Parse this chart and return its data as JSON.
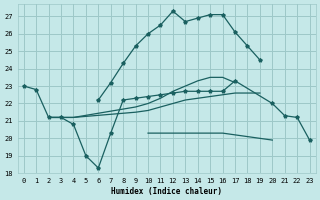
{
  "xlabel": "Humidex (Indice chaleur)",
  "bg_color": "#c5e8e8",
  "grid_color": "#9dc8c8",
  "line_color": "#1a6060",
  "xlim": [
    -0.5,
    23.5
  ],
  "ylim": [
    18,
    27.7
  ],
  "yticks": [
    18,
    19,
    20,
    21,
    22,
    23,
    24,
    25,
    26,
    27
  ],
  "xticks": [
    0,
    1,
    2,
    3,
    4,
    5,
    6,
    7,
    8,
    9,
    10,
    11,
    12,
    13,
    14,
    15,
    16,
    17,
    18,
    19,
    20,
    21,
    22,
    23
  ],
  "series": [
    {
      "x": [
        6,
        7,
        8,
        9,
        10,
        11,
        12,
        13,
        14,
        15,
        16,
        17,
        18,
        19
      ],
      "y": [
        22.2,
        23.2,
        24.3,
        25.3,
        26.0,
        26.5,
        27.3,
        26.7,
        26.9,
        27.1,
        27.1,
        26.1,
        25.3,
        24.5
      ],
      "has_markers": true
    },
    {
      "x": [
        0,
        1,
        2,
        3,
        4,
        5,
        6,
        7,
        8,
        9,
        10,
        11,
        12,
        13,
        14,
        15,
        16,
        17,
        20,
        21,
        22,
        23
      ],
      "y": [
        23.0,
        22.8,
        21.2,
        21.2,
        20.8,
        19.0,
        18.3,
        20.3,
        22.2,
        22.3,
        22.4,
        22.5,
        22.6,
        22.7,
        22.7,
        22.7,
        22.7,
        23.3,
        22.0,
        21.3,
        21.2,
        19.9
      ],
      "has_markers": true
    },
    {
      "x": [
        2,
        3,
        4,
        9,
        10,
        11,
        12,
        13,
        14,
        15,
        16,
        17,
        18,
        19
      ],
      "y": [
        21.2,
        21.2,
        21.2,
        21.5,
        21.6,
        21.8,
        22.0,
        22.2,
        22.3,
        22.4,
        22.5,
        22.6,
        22.6,
        22.6
      ],
      "has_markers": false
    },
    {
      "x": [
        2,
        3,
        4,
        9,
        10,
        11,
        12,
        13,
        14,
        15,
        16,
        17
      ],
      "y": [
        21.2,
        21.2,
        21.2,
        21.8,
        22.0,
        22.3,
        22.7,
        23.0,
        23.3,
        23.5,
        23.5,
        23.2
      ],
      "has_markers": false
    },
    {
      "x": [
        10,
        11,
        12,
        13,
        14,
        15,
        16,
        17,
        18,
        19,
        20
      ],
      "y": [
        20.3,
        20.3,
        20.3,
        20.3,
        20.3,
        20.3,
        20.3,
        20.2,
        20.1,
        20.0,
        19.9
      ],
      "has_markers": false
    }
  ]
}
